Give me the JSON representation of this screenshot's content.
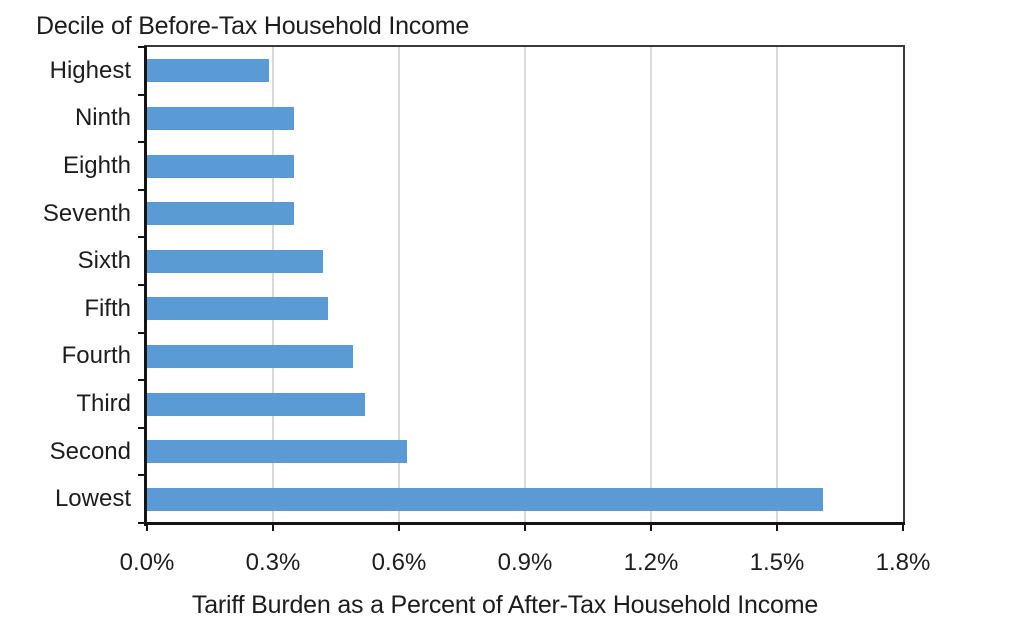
{
  "chart_data": {
    "type": "bar",
    "orientation": "horizontal",
    "title": "Decile of Before-Tax Household Income",
    "xlabel": "Tariff Burden as a Percent of After-Tax Household Income",
    "categories": [
      "Highest",
      "Ninth",
      "Eighth",
      "Seventh",
      "Sixth",
      "Fifth",
      "Fourth",
      "Third",
      "Second",
      "Lowest"
    ],
    "values": [
      0.29,
      0.35,
      0.35,
      0.35,
      0.42,
      0.43,
      0.49,
      0.52,
      0.62,
      1.61
    ],
    "value_unit": "percent",
    "xlim": [
      0,
      1.8
    ],
    "x_tick_step": 0.3,
    "x_tick_labels": [
      "0.0%",
      "0.3%",
      "0.6%",
      "0.9%",
      "1.2%",
      "1.5%",
      "1.8%"
    ],
    "grid": "vertical",
    "legend": "none",
    "bar_color": "#5B9BD5",
    "axis_color": "#141414",
    "border_color": "#3a3a3a",
    "gridline_color": "#d9d9d9",
    "text_color": "#1d1d1d",
    "background": "#ffffff"
  }
}
